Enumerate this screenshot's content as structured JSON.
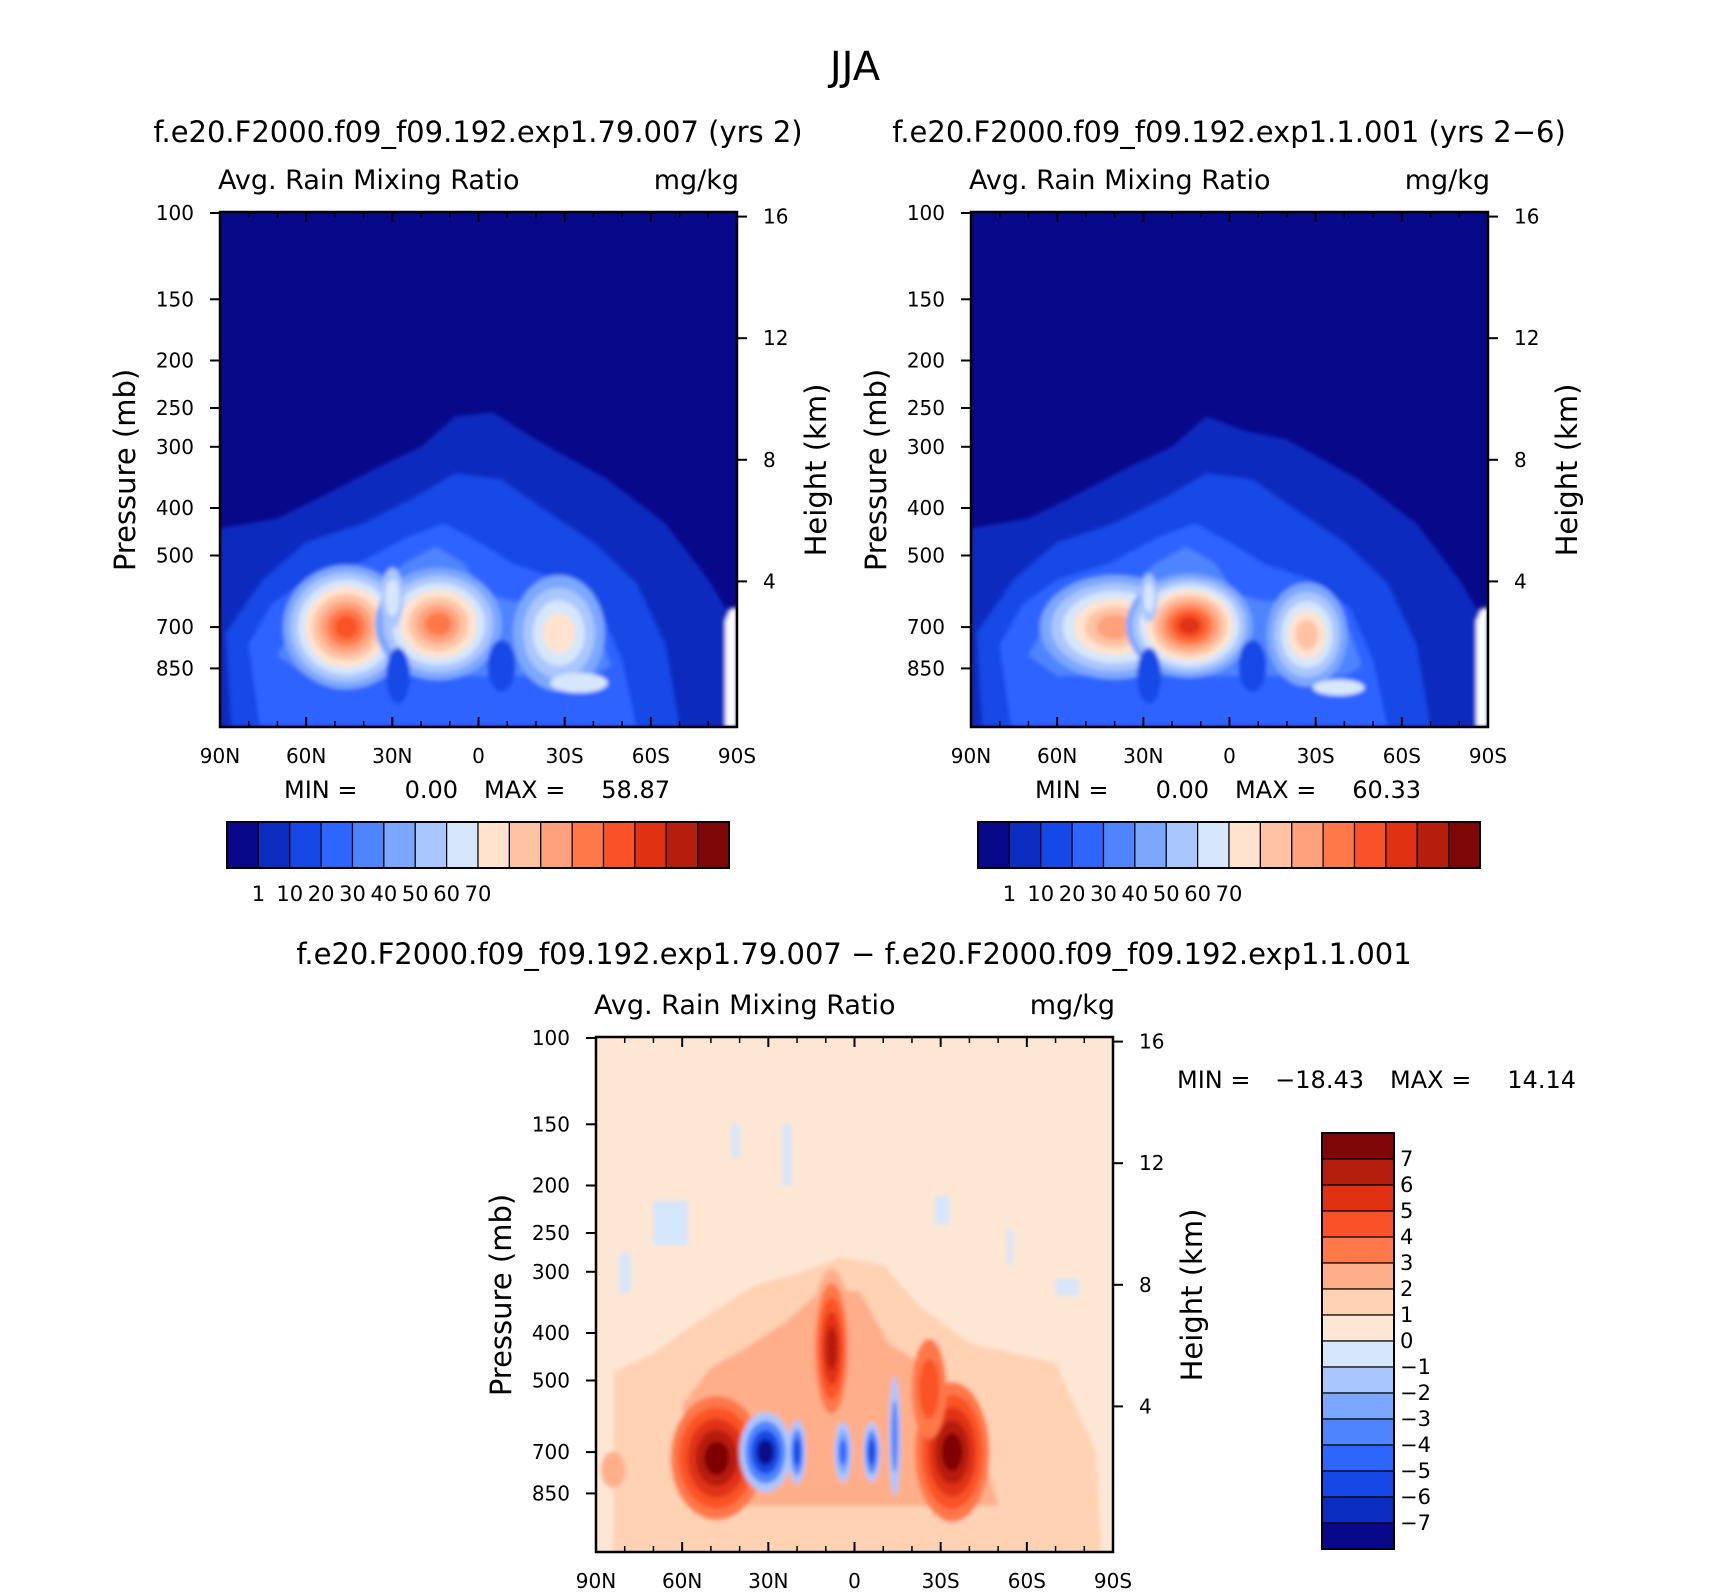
{
  "figure_title": "JJA",
  "panel_titles": {
    "left": "f.e20.F2000.f09_f09.192.exp1.79.007 (yrs 2)",
    "right": "f.e20.F2000.f09_f09.192.exp1.1.001 (yrs 2−6)",
    "diff": "f.e20.F2000.f09_f09.192.exp1.79.007 − f.e20.F2000.f09_f09.192.exp1.1.001"
  },
  "colors": {
    "abs_levels": [
      "#08088a",
      "#0a2cbf",
      "#1548e6",
      "#2e64ff",
      "#4f84ff",
      "#7ca7ff",
      "#aac6ff",
      "#d6e6fb",
      "#ffe3cf",
      "#ffc3a4",
      "#ffa17c",
      "#ff7849",
      "#fa5228",
      "#e03212",
      "#b51e0c",
      "#7f0606"
    ],
    "diff_levels": [
      "#08088a",
      "#0a2cbf",
      "#1548e6",
      "#2e64ff",
      "#4f84ff",
      "#7ca7ff",
      "#aac6ff",
      "#d6e6fb",
      "#fde7d4",
      "#ffd2b4",
      "#ffae8a",
      "#ff7849",
      "#fa5228",
      "#e03212",
      "#b51e0c",
      "#7f0606"
    ]
  },
  "chart_data": [
    {
      "id": "left",
      "type": "contour",
      "variable": "Avg. Rain Mixing Ratio",
      "units": "mg/kg",
      "xlabel": "",
      "ylabel": "Pressure (mb)",
      "ylabel_right": "Height (km)",
      "x_ticks": [
        "90N",
        "60N",
        "30N",
        "0",
        "30S",
        "60S",
        "90S"
      ],
      "x_values": [
        90,
        60,
        30,
        0,
        -30,
        -60,
        -90
      ],
      "y_ticks": [
        100,
        150,
        200,
        250,
        300,
        400,
        500,
        700,
        850
      ],
      "y_ticks_right": [
        16,
        12,
        8,
        4
      ],
      "y_range": [
        100,
        1000
      ],
      "min_label": "MIN =",
      "min_value": "0.00",
      "max_label": "MAX =",
      "max_value": "58.87",
      "colorbar_labels": [
        "1",
        "10",
        "20",
        "30",
        "40",
        "50",
        "60",
        "70"
      ],
      "features": [
        {
          "lat": 45,
          "p": 700,
          "value": 58
        },
        {
          "lat": 14,
          "p": 690,
          "value": 57
        },
        {
          "lat": -28,
          "p": 720,
          "value": 35
        }
      ]
    },
    {
      "id": "right",
      "type": "contour",
      "variable": "Avg. Rain Mixing Ratio",
      "units": "mg/kg",
      "xlabel": "",
      "ylabel": "Pressure (mb)",
      "ylabel_right": "Height (km)",
      "x_ticks": [
        "90N",
        "60N",
        "30N",
        "0",
        "30S",
        "60S",
        "90S"
      ],
      "x_values": [
        90,
        60,
        30,
        0,
        -30,
        -60,
        -90
      ],
      "y_ticks": [
        100,
        150,
        200,
        250,
        300,
        400,
        500,
        700,
        850
      ],
      "y_ticks_right": [
        16,
        12,
        8,
        4
      ],
      "y_range": [
        100,
        1000
      ],
      "min_label": "MIN =",
      "min_value": "0.00",
      "max_label": "MAX =",
      "max_value": "60.33",
      "colorbar_labels": [
        "1",
        "10",
        "20",
        "30",
        "40",
        "50",
        "60",
        "70"
      ],
      "features": [
        {
          "lat": 42,
          "p": 700,
          "value": 48
        },
        {
          "lat": 14,
          "p": 690,
          "value": 60
        },
        {
          "lat": -27,
          "p": 720,
          "value": 32
        }
      ]
    },
    {
      "id": "diff",
      "type": "contour",
      "variable": "Avg. Rain Mixing Ratio",
      "units": "mg/kg",
      "xlabel": "",
      "ylabel": "Pressure (mb)",
      "ylabel_right": "Height (km)",
      "x_ticks": [
        "90N",
        "60N",
        "30N",
        "0",
        "30S",
        "60S",
        "90S"
      ],
      "x_values": [
        90,
        60,
        30,
        0,
        -30,
        -60,
        -90
      ],
      "y_ticks": [
        100,
        150,
        200,
        250,
        300,
        400,
        500,
        700,
        850
      ],
      "y_ticks_right": [
        16,
        12,
        8,
        4
      ],
      "y_range": [
        100,
        1000
      ],
      "min_label": "MIN =",
      "min_value": "−18.43",
      "max_label": "MAX =",
      "max_value": "14.14",
      "colorbar_labels": [
        "7",
        "6",
        "5",
        "4",
        "3",
        "2",
        "1",
        "0",
        "−1",
        "−2",
        "−3",
        "−4",
        "−5",
        "−6",
        "−7"
      ],
      "features": [
        {
          "lat": 47,
          "p": 700,
          "value": 8
        },
        {
          "lat": 30,
          "p": 700,
          "value": -8
        },
        {
          "lat": 10,
          "p": 430,
          "value": 5
        },
        {
          "lat": -34,
          "p": 700,
          "value": 9
        }
      ]
    }
  ]
}
